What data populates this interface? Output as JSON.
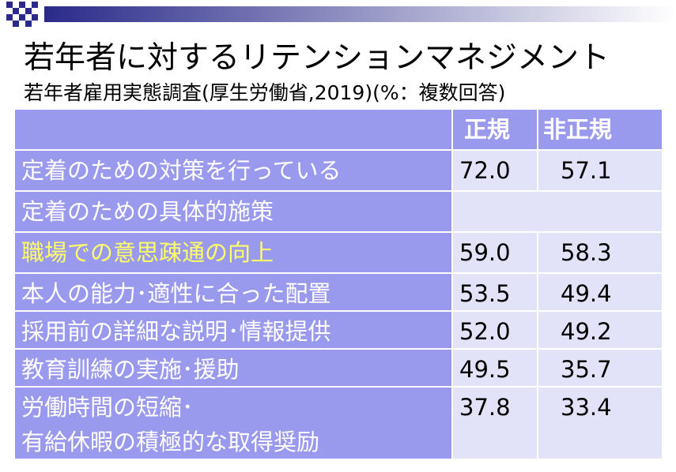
{
  "header": {
    "title": "若年者に対するリテンションマネジメント",
    "subtitle": "若年者雇用実態調査(厚生労働省,2019)(%：複数回答)"
  },
  "table": {
    "columns": [
      "正規",
      "非正規"
    ],
    "rows": [
      {
        "label": [
          "定着のための対策を行っている"
        ],
        "values": [
          "72.0",
          "57.1"
        ]
      },
      {
        "label": [
          "定着のための具体的施策"
        ]
      },
      {
        "label": [
          "職場での意思疎通の向上"
        ],
        "values": [
          "59.0",
          "58.3"
        ],
        "color": "#ffff66"
      },
      {
        "label": [
          "本人の能力･適性に合った配置"
        ],
        "values": [
          "53.5",
          "49.4"
        ]
      },
      {
        "label": [
          "採用前の詳細な説明･情報提供"
        ],
        "values": [
          "52.0",
          "49.2"
        ]
      },
      {
        "label": [
          "教育訓練の実施･援助"
        ],
        "values": [
          "49.5",
          "35.7"
        ]
      },
      {
        "label": [
          "労働時間の短縮･",
          "有給休暇の積極的な取得奨励"
        ],
        "values": [
          "37.8",
          "33.4"
        ]
      }
    ]
  }
}
